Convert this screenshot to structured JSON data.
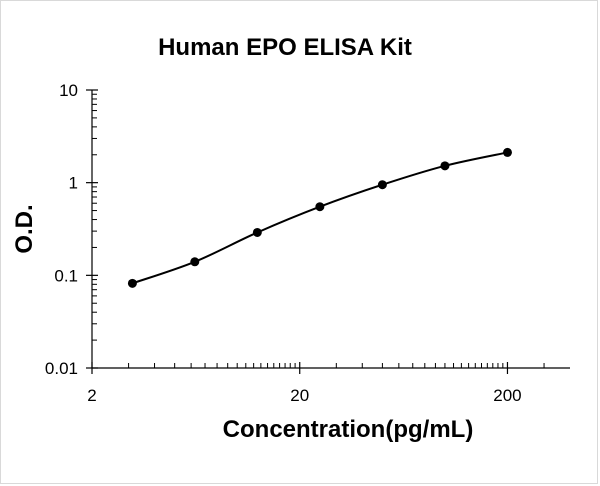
{
  "chart_data": {
    "type": "scatter",
    "title": "Human EPO ELISA Kit",
    "xlabel": "Concentration(pg/mL)",
    "ylabel": "O.D.",
    "x_scale": "log",
    "y_scale": "log",
    "xlim": [
      2,
      400
    ],
    "ylim": [
      0.01,
      10
    ],
    "x_ticks": [
      "2",
      "20",
      "200"
    ],
    "y_ticks": [
      "10",
      "1",
      "0.1",
      "0.01"
    ],
    "grid": false,
    "legend": "none",
    "marker_color": "#000000",
    "line_color": "#000000",
    "series": [
      {
        "x": [
          3.13,
          6.25,
          12.5,
          25,
          50,
          100,
          200
        ],
        "y": [
          0.082,
          0.14,
          0.29,
          0.55,
          0.95,
          1.52,
          2.12
        ]
      }
    ]
  }
}
